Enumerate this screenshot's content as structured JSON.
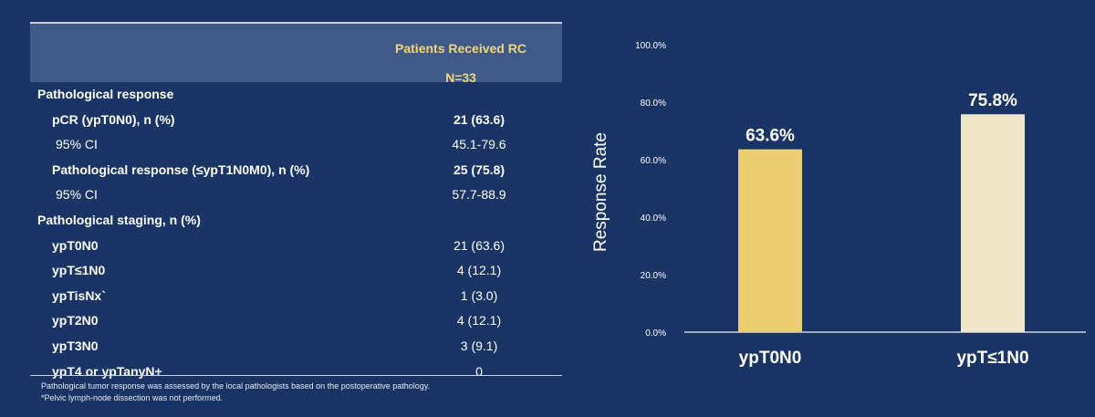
{
  "table": {
    "header_line1": "Patients Received RC",
    "header_line2": "N=33",
    "rows": [
      {
        "label": "Pathological response",
        "value": "",
        "indent": 0,
        "bold_value": false
      },
      {
        "label": "pCR (ypT0N0), n (%)",
        "value": "21 (63.6)",
        "indent": 1,
        "bold_value": true
      },
      {
        "label": "95% CI",
        "value": "45.1-79.6",
        "indent": 2,
        "bold_value": false
      },
      {
        "label": "Pathological response (≤ypT1N0M0), n (%)",
        "value": "25 (75.8)",
        "indent": 1,
        "bold_value": true
      },
      {
        "label": "95% CI",
        "value": "57.7-88.9",
        "indent": 2,
        "bold_value": false
      },
      {
        "label": "Pathological staging, n (%)",
        "value": "",
        "indent": 0,
        "bold_value": false
      },
      {
        "label": "ypT0N0",
        "value": "21 (63.6)",
        "indent": 1,
        "bold_value": false
      },
      {
        "label": "ypT≤1N0",
        "value": "4 (12.1)",
        "indent": 1,
        "bold_value": false
      },
      {
        "label": "ypTisNx`",
        "value": "1 (3.0)",
        "indent": 1,
        "bold_value": false
      },
      {
        "label": "ypT2N0",
        "value": "4 (12.1)",
        "indent": 1,
        "bold_value": false
      },
      {
        "label": "ypT3N0",
        "value": "3 (9.1)",
        "indent": 1,
        "bold_value": false
      },
      {
        "label": "ypT4 or ypTanyN+",
        "value": "0",
        "indent": 1,
        "bold_value": false
      }
    ],
    "footnotes": [
      "Pathological tumor response was assessed by the local pathologists based on the postoperative pathology.",
      "*Pelvic lymph-node dissection was not performed."
    ]
  },
  "chart_data": {
    "type": "bar",
    "categories": [
      "ypT0N0",
      "ypT≤1N0"
    ],
    "values": [
      63.6,
      75.8
    ],
    "data_labels": [
      "63.6%",
      "75.8%"
    ],
    "colors": [
      "#ecce74",
      "#f0e6c8"
    ],
    "ylabel": "Response Rate",
    "xlabel": "",
    "ylim": [
      0,
      100
    ],
    "yticks": [
      0,
      20,
      40,
      60,
      80,
      100
    ],
    "ytick_labels": [
      "0.0%",
      "20.0%",
      "40.0%",
      "60.0%",
      "80.0%",
      "100.0%"
    ],
    "grid": false
  }
}
